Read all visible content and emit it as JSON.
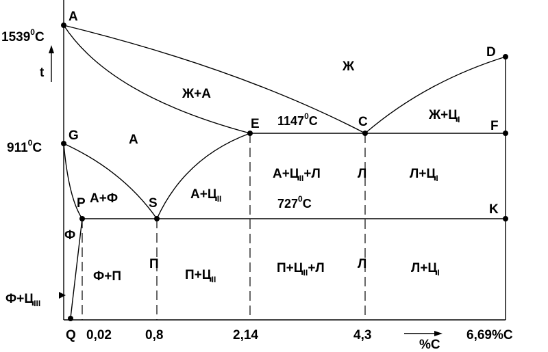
{
  "points": {
    "A": "A",
    "D": "D",
    "G": "G",
    "E": "E",
    "C": "C",
    "F": "F",
    "P": "P",
    "S": "S",
    "K": "K",
    "Q": "Q"
  },
  "temps": {
    "t1539_main": "1539",
    "t1539_sup": "0",
    "t1539_unit": "C",
    "t911_main": "911",
    "t911_sup": "0",
    "t911_unit": "C",
    "t1147_main": "1147",
    "t1147_sup": "0",
    "t1147_unit": "C",
    "t727_main": "727",
    "t727_sup": "0",
    "t727_unit": "C"
  },
  "axis": {
    "t": "t",
    "x_02": "0,02",
    "x_08": "0,8",
    "x_214": "2,14",
    "x_43": "4,3",
    "x_669": "6,69%C",
    "pctC": "%C"
  },
  "regions": {
    "zh": "Ж",
    "zh_a": "Ж+А",
    "zh_c_main": "Ж+Ц",
    "zh_c_sub": "I",
    "a": "А",
    "a_f": "А+Ф",
    "a_c2_main": "А+Ц",
    "a_c2_sub": "II",
    "a_c2_l_1": "А+Ц",
    "a_c2_l_sub": "II",
    "a_c2_l_2": "+Л",
    "l_upper": "Л",
    "l_c1_upper_main": "Л+Ц",
    "l_c1_upper_sub": "I",
    "f": "Ф",
    "f_p": "Ф+П",
    "p": "П",
    "p_c2_main": "П+Ц",
    "p_c2_sub": "II",
    "p_c2_l_1": "П+Ц",
    "p_c2_l_sub": "II",
    "p_c2_l_2": "+Л",
    "l_lower": "Л",
    "l_c1_lower_main": "Л+Ц",
    "l_c1_lower_sub": "I",
    "f_c3_main": "Ф+Ц",
    "f_c3_sub": "III"
  }
}
